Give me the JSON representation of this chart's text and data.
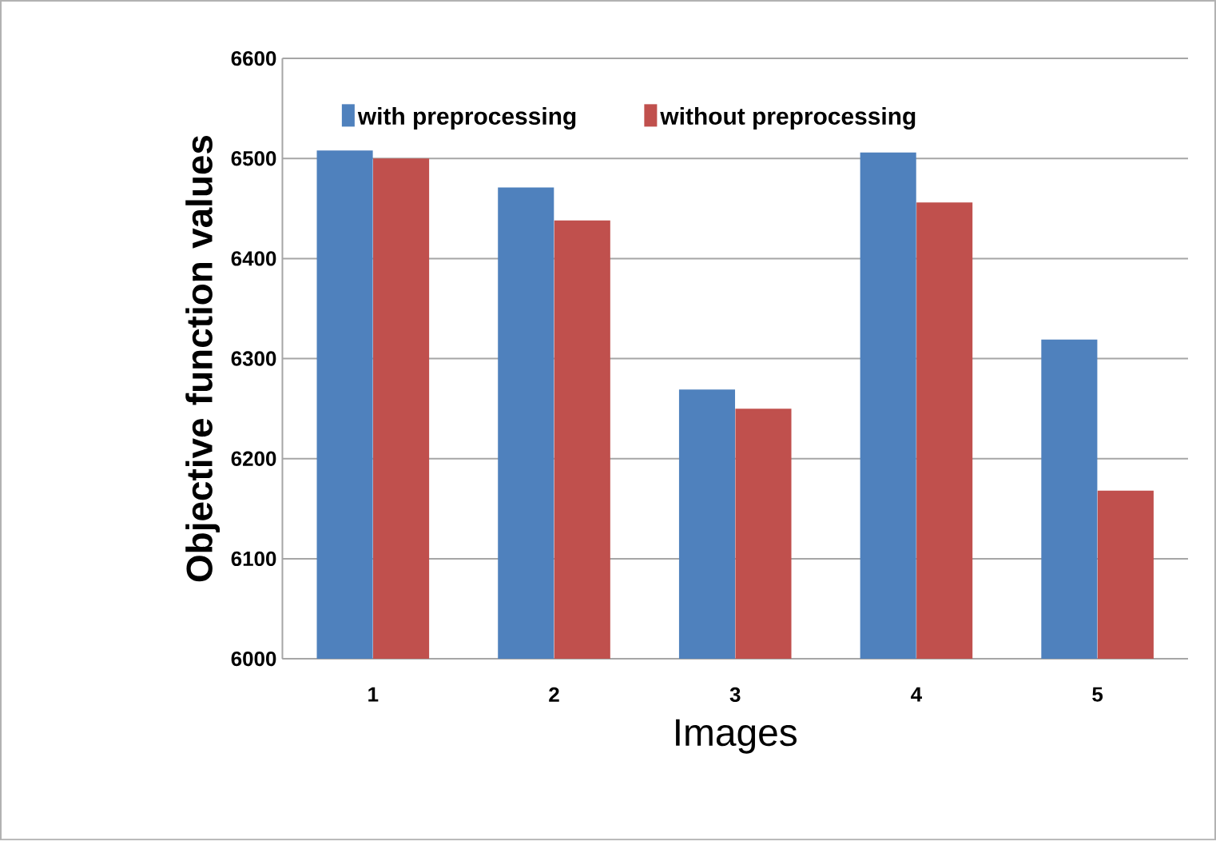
{
  "chart_data": {
    "type": "bar",
    "xlabel": "Images",
    "ylabel": "Objective function values",
    "categories": [
      "1",
      "2",
      "3",
      "4",
      "5"
    ],
    "series": [
      {
        "name": "with preprocessing",
        "color": "#4f81bd",
        "values": [
          6508,
          6471,
          6269,
          6506,
          6319
        ]
      },
      {
        "name": "without preprocessing",
        "color": "#c0504d",
        "values": [
          6500,
          6438,
          6250,
          6456,
          6168
        ]
      }
    ],
    "ylim": [
      6000,
      6600
    ],
    "yticks": [
      6000,
      6100,
      6200,
      6300,
      6400,
      6500,
      6600
    ],
    "grid": "y",
    "legend": "top"
  }
}
